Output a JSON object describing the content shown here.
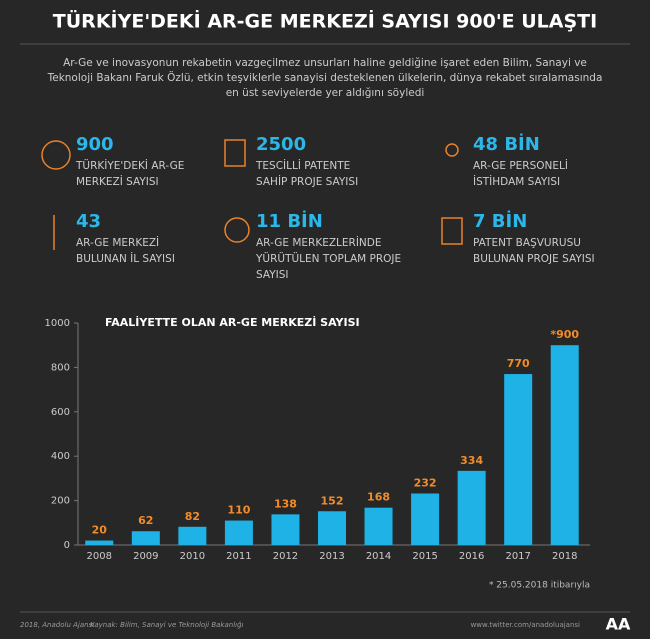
{
  "title": "TÜRKİYE'DEKİ AR-GE MERKEZİ SAYISI 900'E ULAŞTI",
  "subtitle": [
    "Ar-Ge ve inovasyonun rekabetin vazgeçilmez unsurları haline geldiğine işaret eden Bilim, Sanayi ve",
    "Teknoloji Bakanı Faruk Özlü, etkin teşviklerle sanayisi desteklenen ülkelerin, dünya rekabet sıralamasında",
    "en üst seviyelerde yer aldığını söyledi"
  ],
  "stats": [
    {
      "value": "900",
      "label": [
        "TÜRKİYE'DEKİ AR-GE",
        "MERKEZİ SAYISI"
      ]
    },
    {
      "value": "2500",
      "label": [
        "TESCİLLİ PATENTE",
        "SAHİP PROJE SAYISI"
      ]
    },
    {
      "value": "48 BİN",
      "label": [
        "AR-GE PERSONELİ",
        "İSTİHDAM SAYISI"
      ]
    },
    {
      "value": "43",
      "label": [
        "AR-GE MERKEZİ",
        "BULUNAN İL SAYISI"
      ]
    },
    {
      "value": "11 BİN",
      "label": [
        "AR-GE MERKEZLERİNDE",
        "YÜRÜTÜLEN TOPLAM PROJE",
        "SAYISI"
      ]
    },
    {
      "value": "7 BİN",
      "label": [
        "PATENT BAŞVURUSU",
        "BULUNAN PROJE SAYISI"
      ]
    }
  ],
  "chart_data": {
    "type": "bar",
    "title": "FAALİYETTE OLAN AR-GE MERKEZİ SAYISI",
    "categories": [
      "2008",
      "2009",
      "2010",
      "2011",
      "2012",
      "2013",
      "2014",
      "2015",
      "2016",
      "2017",
      "2018"
    ],
    "values": [
      20,
      62,
      82,
      110,
      138,
      152,
      168,
      232,
      334,
      770,
      900
    ],
    "value_labels": [
      "20",
      "62",
      "82",
      "110",
      "138",
      "152",
      "168",
      "232",
      "334",
      "770",
      "*900"
    ],
    "color": "#1fb2e6",
    "label_color": "#f28c28",
    "ylim": [
      0,
      1000
    ],
    "yticks": [
      0,
      200,
      400,
      600,
      800,
      1000
    ],
    "note": "* 25.05.2018 itibarıyla"
  },
  "footer": {
    "copyright": "2018, Anadolu Ajansı",
    "source": "Kaynak: Bilim, Sanayi ve Teknoloji Bakanlığı",
    "link": "www.twitter.com/anadoluajansi",
    "logo": "AA"
  }
}
